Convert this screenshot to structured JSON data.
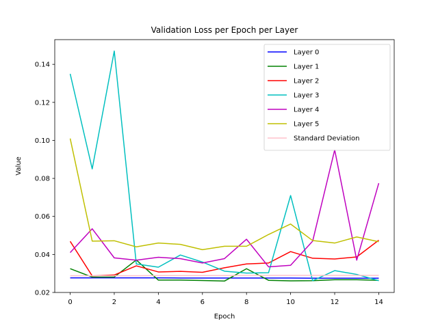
{
  "chart_data": {
    "type": "line",
    "title": "Validation Loss per Epoch per Layer",
    "xlabel": "Epoch",
    "ylabel": "Value",
    "xlim": [
      -0.7,
      14.7
    ],
    "ylim": [
      0.02,
      0.153
    ],
    "xticks": [
      0,
      2,
      4,
      6,
      8,
      10,
      12,
      14
    ],
    "yticks": [
      0.02,
      0.04,
      0.06,
      0.08,
      0.1,
      0.12,
      0.14
    ],
    "ytick_labels": [
      "0.02",
      "0.04",
      "0.06",
      "0.08",
      "0.10",
      "0.12",
      "0.14"
    ],
    "legend_position": "top-right",
    "grid": false,
    "x": [
      0,
      1,
      2,
      3,
      4,
      5,
      6,
      7,
      8,
      9,
      10,
      11,
      12,
      13,
      14
    ],
    "series": [
      {
        "name": "Layer 0",
        "color": "#0000ff",
        "values": [
          0.0277,
          0.0277,
          0.0277,
          0.0277,
          0.0277,
          0.0276,
          0.0276,
          0.0276,
          0.0276,
          0.0276,
          0.0276,
          0.0275,
          0.0275,
          0.0275,
          0.0275
        ]
      },
      {
        "name": "Layer 1",
        "color": "#008000",
        "values": [
          0.0325,
          0.0281,
          0.0281,
          0.0371,
          0.0265,
          0.0265,
          0.0263,
          0.026,
          0.0325,
          0.0264,
          0.0261,
          0.0262,
          0.0267,
          0.0267,
          0.0264
        ]
      },
      {
        "name": "Layer 2",
        "color": "#ff0000",
        "values": [
          0.0469,
          0.0287,
          0.0292,
          0.034,
          0.0308,
          0.0311,
          0.0306,
          0.033,
          0.035,
          0.0355,
          0.0415,
          0.038,
          0.0376,
          0.0387,
          0.0475
        ]
      },
      {
        "name": "Layer 3",
        "color": "#00bfbf",
        "values": [
          0.135,
          0.085,
          0.147,
          0.035,
          0.0333,
          0.0397,
          0.036,
          0.0312,
          0.0302,
          0.0304,
          0.071,
          0.0262,
          0.0315,
          0.0295,
          0.0262
        ]
      },
      {
        "name": "Layer 4",
        "color": "#bf00bf",
        "values": [
          0.041,
          0.0535,
          0.0382,
          0.037,
          0.0385,
          0.0378,
          0.0355,
          0.0378,
          0.048,
          0.0335,
          0.0343,
          0.047,
          0.095,
          0.037,
          0.0775
        ]
      },
      {
        "name": "Layer 5",
        "color": "#bfbf00",
        "values": [
          0.101,
          0.047,
          0.0472,
          0.044,
          0.046,
          0.0453,
          0.0425,
          0.0443,
          0.0443,
          0.0505,
          0.056,
          0.0473,
          0.046,
          0.0492,
          0.0467
        ]
      },
      {
        "name": "Standard Deviation",
        "color": "#ffc0cb",
        "values": [
          0.0288,
          0.0288,
          0.0288,
          0.0288,
          0.0289,
          0.0289,
          0.0289,
          0.0289,
          0.029,
          0.029,
          0.029,
          0.029,
          0.029,
          0.029,
          0.029
        ]
      }
    ]
  }
}
